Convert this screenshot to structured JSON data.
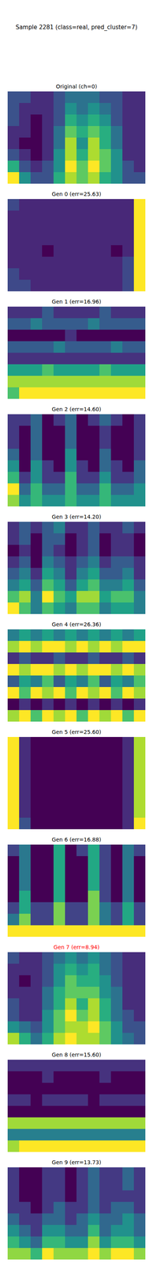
{
  "title": "Sample 2281 (class=real, pred_cluster=7)",
  "chart_data": [
    {
      "type": "heatmap",
      "title": "Original (ch=0)",
      "tick_labels": false,
      "cells": [
        [
          3,
          3,
          2,
          2,
          3,
          4,
          4,
          4,
          3,
          3,
          2,
          2
        ],
        [
          3,
          2,
          2,
          2,
          3,
          5,
          4,
          5,
          4,
          3,
          2,
          2
        ],
        [
          3,
          2,
          1,
          2,
          3,
          6,
          5,
          6,
          5,
          3,
          2,
          2
        ],
        [
          2,
          2,
          1,
          2,
          4,
          7,
          6,
          7,
          6,
          4,
          2,
          2
        ],
        [
          2,
          1,
          1,
          2,
          4,
          8,
          5,
          8,
          6,
          4,
          2,
          2
        ],
        [
          3,
          2,
          1,
          2,
          5,
          8,
          6,
          8,
          7,
          5,
          2,
          2
        ],
        [
          6,
          3,
          2,
          3,
          5,
          9,
          7,
          9,
          7,
          5,
          3,
          2
        ],
        [
          9,
          5,
          3,
          3,
          6,
          8,
          7,
          8,
          6,
          5,
          3,
          3
        ]
      ]
    },
    {
      "type": "heatmap",
      "title": "Gen 0 (err=25.63)",
      "tick_labels": false,
      "cells": [
        [
          2,
          1,
          1,
          1,
          1,
          1,
          1,
          1,
          1,
          1,
          1,
          9
        ],
        [
          1,
          1,
          1,
          1,
          1,
          1,
          1,
          1,
          1,
          1,
          1,
          9
        ],
        [
          1,
          1,
          1,
          1,
          1,
          1,
          1,
          1,
          1,
          1,
          1,
          9
        ],
        [
          1,
          1,
          1,
          1,
          1,
          1,
          1,
          1,
          1,
          1,
          1,
          9
        ],
        [
          1,
          1,
          1,
          0,
          1,
          1,
          1,
          1,
          1,
          0,
          1,
          9
        ],
        [
          1,
          1,
          1,
          1,
          1,
          1,
          1,
          1,
          1,
          1,
          2,
          9
        ],
        [
          2,
          1,
          1,
          1,
          1,
          1,
          1,
          1,
          1,
          1,
          2,
          9
        ],
        [
          2,
          2,
          1,
          1,
          1,
          1,
          1,
          1,
          1,
          1,
          2,
          9
        ]
      ]
    },
    {
      "type": "heatmap",
      "title": "Gen 1 (err=16.96)",
      "tick_labels": false,
      "cells": [
        [
          3,
          3,
          3,
          4,
          3,
          3,
          3,
          3,
          4,
          3,
          3,
          3
        ],
        [
          4,
          4,
          5,
          4,
          4,
          4,
          4,
          5,
          4,
          4,
          4,
          4
        ],
        [
          2,
          2,
          2,
          2,
          2,
          3,
          2,
          2,
          2,
          2,
          2,
          2
        ],
        [
          4,
          4,
          4,
          4,
          5,
          4,
          4,
          4,
          4,
          5,
          4,
          4
        ],
        [
          3,
          3,
          3,
          3,
          3,
          3,
          3,
          3,
          3,
          3,
          3,
          3
        ],
        [
          6,
          6,
          6,
          7,
          6,
          6,
          6,
          6,
          7,
          6,
          6,
          6
        ],
        [
          8,
          8,
          8,
          8,
          8,
          8,
          8,
          8,
          8,
          8,
          8,
          8
        ],
        [
          7,
          9,
          9,
          9,
          9,
          9,
          9,
          9,
          9,
          9,
          9,
          9
        ]
      ]
    },
    {
      "type": "heatmap",
      "title": "Gen 2 (err=14.60)",
      "tick_labels": false,
      "cells": [
        [
          2,
          2,
          3,
          1,
          2,
          3,
          1,
          2,
          3,
          2,
          1,
          2
        ],
        [
          2,
          1,
          3,
          1,
          1,
          3,
          1,
          1,
          2,
          1,
          1,
          2
        ],
        [
          2,
          1,
          3,
          1,
          1,
          3,
          1,
          1,
          2,
          1,
          1,
          2
        ],
        [
          3,
          1,
          3,
          1,
          1,
          4,
          1,
          1,
          3,
          1,
          1,
          2
        ],
        [
          4,
          1,
          4,
          2,
          1,
          4,
          2,
          1,
          3,
          2,
          1,
          3
        ],
        [
          5,
          2,
          4,
          2,
          2,
          5,
          2,
          2,
          4,
          2,
          2,
          3
        ],
        [
          7,
          3,
          5,
          3,
          3,
          5,
          3,
          3,
          5,
          3,
          3,
          4
        ],
        [
          6,
          4,
          5,
          4,
          4,
          5,
          4,
          4,
          5,
          4,
          4,
          4
        ]
      ]
    },
    {
      "type": "heatmap",
      "title": "Gen 3 (err=14.20)",
      "tick_labels": false,
      "cells": [
        [
          2,
          3,
          2,
          3,
          4,
          2,
          2,
          3,
          2,
          2,
          3,
          2
        ],
        [
          2,
          3,
          1,
          3,
          3,
          1,
          2,
          3,
          1,
          2,
          2,
          1
        ],
        [
          1,
          2,
          1,
          3,
          2,
          1,
          2,
          3,
          1,
          2,
          2,
          1
        ],
        [
          2,
          3,
          1,
          4,
          3,
          2,
          3,
          4,
          2,
          3,
          3,
          2
        ],
        [
          3,
          4,
          2,
          5,
          4,
          2,
          4,
          5,
          3,
          3,
          4,
          2
        ],
        [
          4,
          5,
          3,
          6,
          5,
          3,
          5,
          6,
          4,
          4,
          5,
          3
        ],
        [
          6,
          7,
          4,
          8,
          6,
          5,
          7,
          7,
          5,
          6,
          6,
          4
        ],
        [
          8,
          6,
          4,
          6,
          5,
          4,
          6,
          6,
          4,
          5,
          5,
          4
        ]
      ]
    },
    {
      "type": "heatmap",
      "title": "Gen 4 (err=26.36)",
      "tick_labels": false,
      "cells": [
        [
          5,
          6,
          5,
          6,
          5,
          6,
          5,
          6,
          5,
          6,
          5,
          6
        ],
        [
          8,
          9,
          8,
          9,
          9,
          8,
          9,
          8,
          9,
          8,
          9,
          9
        ],
        [
          3,
          4,
          3,
          3,
          4,
          3,
          3,
          4,
          3,
          3,
          4,
          3
        ],
        [
          9,
          8,
          9,
          9,
          8,
          9,
          8,
          9,
          9,
          8,
          9,
          8
        ],
        [
          4,
          6,
          5,
          7,
          4,
          6,
          5,
          7,
          4,
          6,
          5,
          7
        ],
        [
          9,
          7,
          9,
          8,
          9,
          7,
          9,
          8,
          9,
          7,
          9,
          8
        ],
        [
          2,
          3,
          2,
          3,
          2,
          3,
          2,
          3,
          2,
          3,
          2,
          3
        ],
        [
          8,
          9,
          7,
          9,
          8,
          9,
          7,
          9,
          8,
          9,
          7,
          9
        ]
      ]
    },
    {
      "type": "heatmap",
      "title": "Gen 5 (err=25.60)",
      "tick_labels": false,
      "cells": [
        [
          9,
          2,
          1,
          1,
          1,
          1,
          1,
          1,
          1,
          1,
          2,
          8
        ],
        [
          9,
          2,
          1,
          1,
          1,
          1,
          1,
          1,
          1,
          1,
          2,
          8
        ],
        [
          9,
          2,
          1,
          1,
          1,
          1,
          1,
          1,
          1,
          1,
          2,
          8
        ],
        [
          9,
          2,
          1,
          1,
          1,
          1,
          1,
          1,
          1,
          1,
          2,
          8
        ],
        [
          9,
          2,
          1,
          1,
          1,
          1,
          1,
          1,
          1,
          1,
          2,
          8
        ],
        [
          9,
          2,
          1,
          1,
          1,
          1,
          1,
          1,
          1,
          1,
          2,
          8
        ],
        [
          9,
          2,
          1,
          1,
          1,
          1,
          1,
          1,
          1,
          1,
          2,
          8
        ],
        [
          9,
          3,
          1,
          1,
          1,
          1,
          1,
          1,
          1,
          1,
          2,
          9
        ]
      ]
    },
    {
      "type": "heatmap",
      "title": "Gen 6 (err=16.88)",
      "tick_labels": false,
      "cells": [
        [
          2,
          3,
          1,
          1,
          4,
          1,
          2,
          4,
          2,
          1,
          3,
          2
        ],
        [
          1,
          3,
          1,
          1,
          4,
          1,
          1,
          4,
          2,
          1,
          3,
          1
        ],
        [
          1,
          3,
          1,
          1,
          4,
          1,
          1,
          4,
          2,
          1,
          3,
          1
        ],
        [
          1,
          3,
          1,
          1,
          4,
          1,
          1,
          4,
          2,
          1,
          3,
          1
        ],
        [
          1,
          4,
          1,
          1,
          4,
          1,
          1,
          5,
          2,
          1,
          3,
          1
        ],
        [
          2,
          4,
          2,
          2,
          5,
          2,
          2,
          5,
          3,
          2,
          4,
          2
        ],
        [
          3,
          5,
          2,
          2,
          5,
          2,
          2,
          5,
          3,
          2,
          4,
          2
        ],
        [
          6,
          6,
          6,
          6,
          6,
          6,
          6,
          6,
          6,
          6,
          6,
          6
        ]
      ]
    },
    {
      "type": "heatmap",
      "title": "Gen 7 (err=8.94)",
      "color": "#ff0000",
      "tick_labels": false,
      "cells": [
        [
          3,
          2,
          2,
          3,
          4,
          5,
          4,
          5,
          4,
          3,
          2,
          2
        ],
        [
          2,
          2,
          2,
          3,
          5,
          6,
          5,
          6,
          4,
          3,
          2,
          2
        ],
        [
          2,
          1,
          2,
          3,
          5,
          7,
          6,
          6,
          5,
          3,
          2,
          2
        ],
        [
          2,
          2,
          2,
          4,
          6,
          7,
          7,
          7,
          5,
          4,
          2,
          2
        ],
        [
          3,
          2,
          2,
          4,
          6,
          8,
          6,
          8,
          6,
          4,
          2,
          2
        ],
        [
          3,
          2,
          2,
          5,
          7,
          9,
          7,
          8,
          6,
          4,
          3,
          2
        ],
        [
          5,
          4,
          3,
          5,
          7,
          8,
          8,
          9,
          7,
          5,
          3,
          3
        ],
        [
          8,
          6,
          4,
          6,
          8,
          9,
          8,
          8,
          7,
          5,
          4,
          3
        ]
      ]
    },
    {
      "type": "heatmap",
      "title": "Gen 8 (err=15.60)",
      "tick_labels": false,
      "cells": [
        [
          3,
          3,
          3,
          3,
          3,
          3,
          3,
          3,
          3,
          3,
          3,
          3
        ],
        [
          2,
          2,
          2,
          3,
          2,
          2,
          2,
          2,
          3,
          2,
          2,
          2
        ],
        [
          2,
          2,
          2,
          2,
          2,
          2,
          2,
          2,
          2,
          2,
          2,
          2
        ],
        [
          3,
          3,
          2,
          3,
          3,
          3,
          3,
          2,
          3,
          3,
          3,
          3
        ],
        [
          2,
          2,
          2,
          2,
          2,
          2,
          2,
          2,
          2,
          2,
          2,
          2
        ],
        [
          8,
          8,
          8,
          8,
          8,
          8,
          8,
          8,
          8,
          8,
          8,
          8
        ],
        [
          5,
          5,
          5,
          5,
          5,
          5,
          5,
          5,
          5,
          5,
          5,
          5
        ],
        [
          8,
          9,
          9,
          9,
          9,
          9,
          9,
          9,
          9,
          9,
          9,
          9
        ]
      ]
    },
    {
      "type": "heatmap",
      "title": "Gen 9 (err=13.73)",
      "tick_labels": false,
      "cells": [
        [
          2,
          1,
          1,
          2,
          2,
          1,
          2,
          3,
          2,
          2,
          3,
          2
        ],
        [
          2,
          1,
          1,
          2,
          2,
          1,
          2,
          3,
          2,
          2,
          3,
          2
        ],
        [
          2,
          1,
          1,
          2,
          2,
          1,
          2,
          3,
          2,
          2,
          2,
          2
        ],
        [
          2,
          2,
          1,
          2,
          3,
          2,
          2,
          3,
          2,
          3,
          3,
          2
        ],
        [
          3,
          2,
          2,
          3,
          3,
          2,
          3,
          4,
          3,
          3,
          4,
          3
        ],
        [
          4,
          3,
          2,
          4,
          4,
          3,
          3,
          5,
          3,
          4,
          4,
          3
        ],
        [
          5,
          4,
          3,
          5,
          5,
          4,
          4,
          6,
          4,
          5,
          5,
          4
        ],
        [
          6,
          6,
          5,
          7,
          6,
          6,
          6,
          7,
          6,
          7,
          7,
          6
        ]
      ]
    }
  ]
}
